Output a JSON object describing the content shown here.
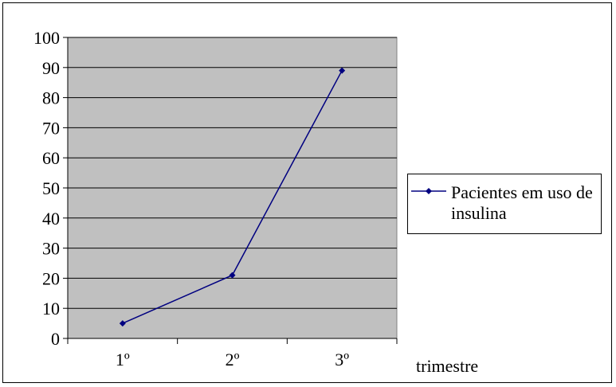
{
  "chart_data": {
    "type": "line",
    "categories": [
      "1º",
      "2º",
      "3º"
    ],
    "series": [
      {
        "name": "Pacientes em uso de insulina",
        "values": [
          5,
          21,
          89
        ],
        "color": "#000080",
        "marker": "diamond"
      }
    ],
    "xlabel": "trimestre",
    "ylabel": "",
    "ylim": [
      0,
      100
    ],
    "yticks": [
      0,
      10,
      20,
      30,
      40,
      50,
      60,
      70,
      80,
      90,
      100
    ],
    "grid": true,
    "plot_background": "#c0c0c0",
    "legend_position": "right"
  }
}
